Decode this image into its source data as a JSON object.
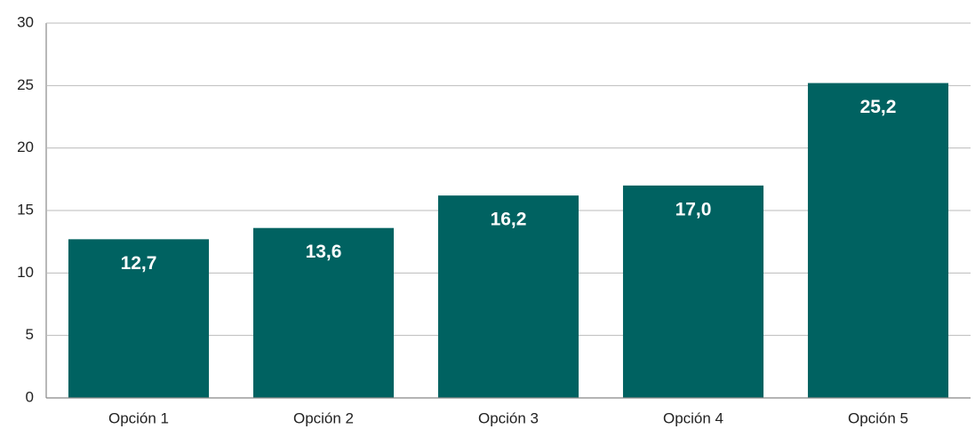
{
  "chart_data": {
    "type": "bar",
    "categories": [
      "Opción 1",
      "Opción 2",
      "Opción 3",
      "Opción 4",
      "Opción 5"
    ],
    "values": [
      12.7,
      13.6,
      16.2,
      17.0,
      25.2
    ],
    "value_labels": [
      "12,7",
      "13,6",
      "16,2",
      "17,0",
      "25,2"
    ],
    "color": "#006261",
    "ylim": [
      0,
      30
    ],
    "yticks": [
      0,
      5,
      10,
      15,
      20,
      25,
      30
    ],
    "grid": true
  }
}
